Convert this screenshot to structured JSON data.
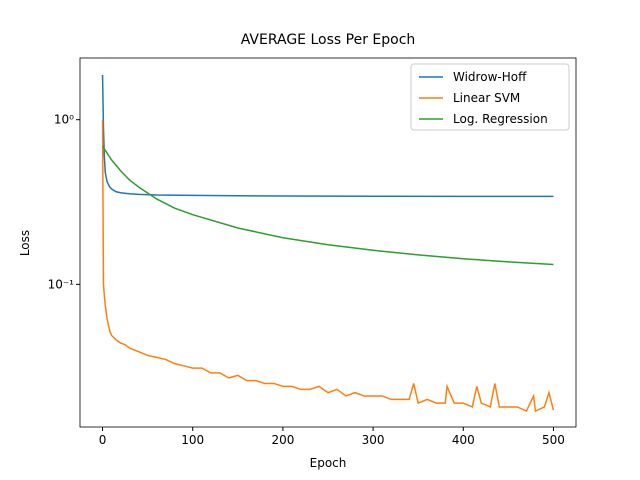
{
  "chart_data": {
    "type": "line",
    "title": "AVERAGE Loss Per Epoch",
    "x_label": "Epoch",
    "y_label": "Loss",
    "yscale": "log",
    "legend": "upper right",
    "xlim": [
      -25,
      525
    ],
    "xticks": [
      0,
      100,
      200,
      300,
      400,
      500
    ],
    "ylim": [
      0.0136,
      2.37
    ],
    "yticks": [
      {
        "value": 1,
        "label": "10⁰"
      },
      {
        "value": 0.1,
        "label": "10⁻¹"
      }
    ],
    "series": [
      {
        "name": "Widrow-Hoff",
        "color": "#1f77b4",
        "x": [
          0,
          1,
          2,
          3,
          5,
          8,
          10,
          15,
          20,
          30,
          40,
          60,
          100,
          150,
          200,
          300,
          400,
          500
        ],
        "values": [
          1.87,
          0.9,
          0.6,
          0.48,
          0.42,
          0.39,
          0.38,
          0.365,
          0.36,
          0.355,
          0.352,
          0.349,
          0.347,
          0.345,
          0.344,
          0.343,
          0.342,
          0.342
        ]
      },
      {
        "name": "Linear SVM",
        "color": "#ff7f0e",
        "x": [
          0,
          1,
          2,
          3,
          5,
          8,
          10,
          15,
          20,
          25,
          30,
          40,
          50,
          60,
          70,
          80,
          90,
          100,
          110,
          120,
          130,
          140,
          150,
          160,
          170,
          180,
          190,
          200,
          210,
          220,
          230,
          240,
          250,
          260,
          270,
          280,
          290,
          300,
          310,
          320,
          330,
          340,
          345,
          350,
          360,
          370,
          380,
          382,
          390,
          400,
          410,
          415,
          420,
          430,
          435,
          440,
          450,
          460,
          470,
          478,
          480,
          490,
          495,
          500
        ],
        "values": [
          1.0,
          0.1,
          0.085,
          0.075,
          0.062,
          0.052,
          0.049,
          0.046,
          0.044,
          0.043,
          0.041,
          0.039,
          0.037,
          0.036,
          0.035,
          0.033,
          0.032,
          0.031,
          0.031,
          0.029,
          0.029,
          0.027,
          0.028,
          0.026,
          0.026,
          0.025,
          0.025,
          0.024,
          0.024,
          0.023,
          0.023,
          0.024,
          0.022,
          0.023,
          0.021,
          0.022,
          0.021,
          0.021,
          0.021,
          0.02,
          0.02,
          0.02,
          0.025,
          0.019,
          0.02,
          0.019,
          0.019,
          0.024,
          0.019,
          0.019,
          0.018,
          0.024,
          0.019,
          0.018,
          0.025,
          0.018,
          0.018,
          0.018,
          0.017,
          0.021,
          0.017,
          0.018,
          0.022,
          0.0172
        ]
      },
      {
        "name": "Log. Regression",
        "color": "#2ca02c",
        "x": [
          0,
          10,
          20,
          30,
          40,
          60,
          80,
          100,
          150,
          200,
          250,
          300,
          350,
          400,
          450,
          500
        ],
        "values": [
          0.69,
          0.57,
          0.49,
          0.43,
          0.39,
          0.33,
          0.29,
          0.265,
          0.22,
          0.192,
          0.174,
          0.161,
          0.151,
          0.143,
          0.137,
          0.132
        ]
      }
    ]
  }
}
